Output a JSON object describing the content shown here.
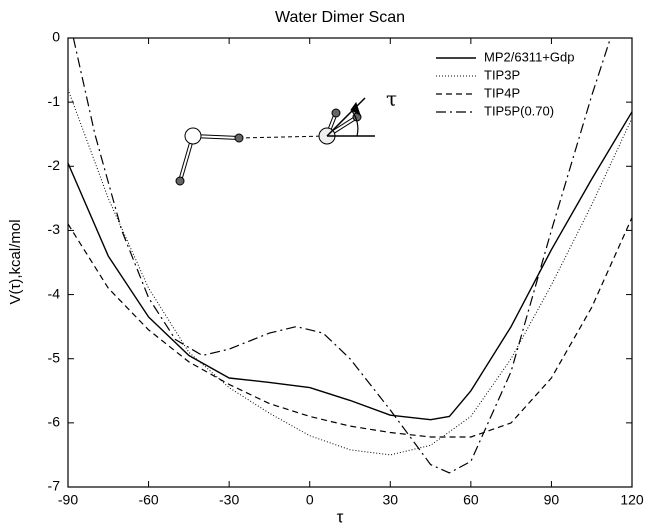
{
  "chart_data": {
    "type": "line",
    "title": "Water Dimer Scan",
    "x_label": "τ",
    "y_label": "V(τ),kcal/mol",
    "annotation": "τ",
    "xlim": [
      -90,
      120
    ],
    "ylim": [
      -7,
      0
    ],
    "xticks": [
      -90,
      -60,
      -30,
      0,
      30,
      60,
      90,
      120
    ],
    "yticks": [
      -7,
      -6,
      -5,
      -4,
      -3,
      -2,
      -1,
      0
    ],
    "legend": "top-right",
    "series": [
      {
        "name": "MP2/6311+Gdp",
        "color": "#000000",
        "style": "solid",
        "x": [
          -90,
          -75,
          -60,
          -45,
          -30,
          -15,
          0,
          15,
          30,
          45,
          52,
          60,
          75,
          90,
          105,
          120
        ],
        "values": [
          -1.95,
          -3.4,
          -4.35,
          -4.95,
          -5.3,
          -5.37,
          -5.45,
          -5.65,
          -5.88,
          -5.95,
          -5.9,
          -5.5,
          -4.5,
          -3.3,
          -2.2,
          -1.15
        ]
      },
      {
        "name": "TIP3P",
        "color": "#000000",
        "style": "dotted",
        "x": [
          -90,
          -75,
          -60,
          -45,
          -30,
          -15,
          0,
          15,
          30,
          45,
          60,
          75,
          90,
          105,
          120
        ],
        "values": [
          -0.8,
          -2.5,
          -3.9,
          -4.9,
          -5.45,
          -5.85,
          -6.2,
          -6.42,
          -6.5,
          -6.35,
          -5.9,
          -5.0,
          -3.85,
          -2.6,
          -1.25
        ]
      },
      {
        "name": "TIP4P",
        "color": "#000000",
        "style": "dashed",
        "x": [
          -90,
          -75,
          -60,
          -45,
          -30,
          -15,
          0,
          15,
          30,
          45,
          60,
          75,
          90,
          105,
          120
        ],
        "values": [
          -2.9,
          -3.9,
          -4.55,
          -5.05,
          -5.4,
          -5.7,
          -5.9,
          -6.05,
          -6.15,
          -6.22,
          -6.22,
          -6.0,
          -5.3,
          -4.2,
          -2.8
        ]
      },
      {
        "name": "TIP5P(0.70)",
        "color": "#000000",
        "style": "dashdot",
        "x": [
          -88,
          -80,
          -70,
          -60,
          -50,
          -40,
          -30,
          -15,
          -5,
          5,
          15,
          30,
          45,
          52,
          60,
          75,
          90,
          105,
          112
        ],
        "values": [
          0,
          -1.5,
          -3.0,
          -4.05,
          -4.7,
          -4.95,
          -4.85,
          -4.6,
          -4.5,
          -4.6,
          -5.0,
          -5.8,
          -6.65,
          -6.78,
          -6.6,
          -5.2,
          -3.0,
          -0.9,
          0
        ]
      }
    ]
  }
}
